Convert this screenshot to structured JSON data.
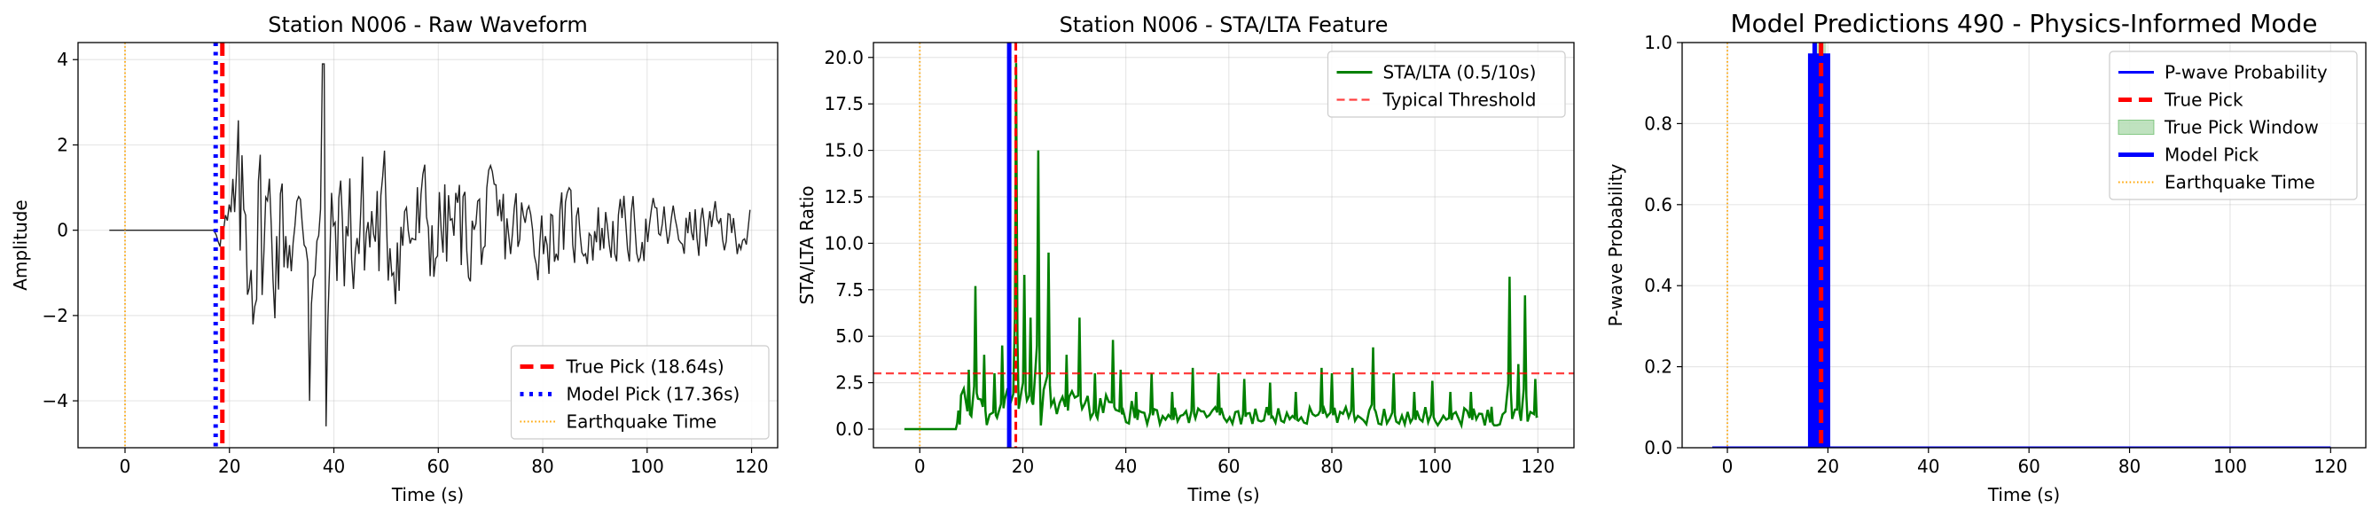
{
  "chart_data": [
    {
      "type": "line",
      "title": "Station N006 - Raw Waveform",
      "xlabel": "Time (s)",
      "ylabel": "Amplitude",
      "xlim": [
        -9,
        125
      ],
      "ylim": [
        -5.1,
        4.4
      ],
      "xticks": [
        0,
        20,
        40,
        60,
        80,
        100,
        120
      ],
      "yticks": [
        -4,
        -2,
        0,
        2,
        4
      ],
      "xtick_labels": [
        "0",
        "20",
        "40",
        "60",
        "80",
        "100",
        "120"
      ],
      "ytick_labels": [
        "−4",
        "−2",
        "0",
        "2",
        "4"
      ],
      "grid": true,
      "legend_position": "lower-right",
      "series": [
        {
          "name": "",
          "color": "#222222",
          "kind": "waveform",
          "x_start": -3,
          "x_end": 120,
          "onset": 17.5,
          "peak_amp": 4.0,
          "min_amp": -4.6
        }
      ],
      "vlines": [
        {
          "name": "True Pick (18.64s)",
          "x": 18.64,
          "color": "#ff0000",
          "style": "dashed",
          "width": "thick"
        },
        {
          "name": "Model Pick (17.36s)",
          "x": 17.36,
          "color": "#0000ff",
          "style": "dotted",
          "width": "thick"
        },
        {
          "name": "Earthquake Time",
          "x": 0,
          "color": "#ffa500",
          "style": "dotted",
          "width": "thin"
        }
      ],
      "legend": [
        "True Pick (18.64s)",
        "Model Pick (17.36s)",
        "Earthquake Time"
      ]
    },
    {
      "type": "line",
      "title": "Station N006 - STA/LTA Feature",
      "xlabel": "Time (s)",
      "ylabel": "STA/LTA Ratio",
      "xlim": [
        -9,
        127
      ],
      "ylim": [
        -1.0,
        20.8
      ],
      "xticks": [
        0,
        20,
        40,
        60,
        80,
        100,
        120
      ],
      "yticks": [
        0.0,
        2.5,
        5.0,
        7.5,
        10.0,
        12.5,
        15.0,
        17.5,
        20.0
      ],
      "xtick_labels": [
        "0",
        "20",
        "40",
        "60",
        "80",
        "100",
        "120"
      ],
      "ytick_labels": [
        "0.0",
        "2.5",
        "5.0",
        "7.5",
        "10.0",
        "12.5",
        "15.0",
        "17.5",
        "20.0"
      ],
      "grid": true,
      "legend_position": "top-right",
      "series": [
        {
          "name": "STA/LTA (0.5/10s)",
          "color": "#008000",
          "kind": "stalta",
          "x_start": -3,
          "x_end": 120
        }
      ],
      "peaks": [
        {
          "x": 7.5,
          "y": 1.0
        },
        {
          "x": 9.5,
          "y": 3.2
        },
        {
          "x": 10.8,
          "y": 7.7
        },
        {
          "x": 12.5,
          "y": 4.0
        },
        {
          "x": 14.5,
          "y": 3.0
        },
        {
          "x": 16.0,
          "y": 4.5
        },
        {
          "x": 18.7,
          "y": 19.7
        },
        {
          "x": 20.3,
          "y": 8.3
        },
        {
          "x": 21.5,
          "y": 6.0
        },
        {
          "x": 23.0,
          "y": 15.0
        },
        {
          "x": 25.0,
          "y": 9.5
        },
        {
          "x": 28.5,
          "y": 4.0
        },
        {
          "x": 31.0,
          "y": 6.0
        },
        {
          "x": 34.0,
          "y": 3.0
        },
        {
          "x": 37.5,
          "y": 4.8
        },
        {
          "x": 39.0,
          "y": 3.2
        },
        {
          "x": 42.0,
          "y": 2.0
        },
        {
          "x": 45.0,
          "y": 3.0
        },
        {
          "x": 49.0,
          "y": 2.0
        },
        {
          "x": 53.0,
          "y": 3.3
        },
        {
          "x": 58.0,
          "y": 3.0
        },
        {
          "x": 63.0,
          "y": 2.7
        },
        {
          "x": 68.0,
          "y": 2.5
        },
        {
          "x": 73.0,
          "y": 2.0
        },
        {
          "x": 78.0,
          "y": 3.3
        },
        {
          "x": 80.0,
          "y": 3.0
        },
        {
          "x": 84.0,
          "y": 3.3
        },
        {
          "x": 88.0,
          "y": 4.4
        },
        {
          "x": 92.0,
          "y": 3.0
        },
        {
          "x": 96.0,
          "y": 2.0
        },
        {
          "x": 99.5,
          "y": 2.6
        },
        {
          "x": 103.0,
          "y": 2.0
        },
        {
          "x": 107.0,
          "y": 2.0
        },
        {
          "x": 111.0,
          "y": 1.2
        },
        {
          "x": 114.5,
          "y": 8.2
        },
        {
          "x": 116.2,
          "y": 3.5
        },
        {
          "x": 117.5,
          "y": 7.2
        },
        {
          "x": 119.5,
          "y": 2.7
        }
      ],
      "hlines": [
        {
          "name": "Typical Threshold",
          "y": 3.0,
          "color": "#ff0000",
          "style": "dashed"
        }
      ],
      "vlines": [
        {
          "name": "",
          "x": 17.36,
          "color": "#0000ff",
          "style": "solid",
          "width": "thick"
        },
        {
          "name": "",
          "x": 18.64,
          "color": "#ff0000",
          "style": "dashed",
          "width": "medium"
        },
        {
          "name": "",
          "x": 0,
          "color": "#ffa500",
          "style": "dotted",
          "width": "thin"
        }
      ],
      "legend": [
        "STA/LTA (0.5/10s)",
        "Typical Threshold"
      ]
    },
    {
      "type": "line",
      "title": "Model Predictions 490 - Physics-Informed Mode",
      "xlabel": "Time (s)",
      "ylabel": "P-wave Probability",
      "xlim": [
        -9,
        127
      ],
      "ylim": [
        0.0,
        1.0
      ],
      "xticks": [
        0,
        20,
        40,
        60,
        80,
        100,
        120
      ],
      "yticks": [
        0.0,
        0.2,
        0.4,
        0.6,
        0.8,
        1.0
      ],
      "xtick_labels": [
        "0",
        "20",
        "40",
        "60",
        "80",
        "100",
        "120"
      ],
      "ytick_labels": [
        "0.0",
        "0.2",
        "0.4",
        "0.6",
        "0.8",
        "1.0"
      ],
      "grid": true,
      "legend_position": "top-right",
      "series": [
        {
          "name": "P-wave Probability",
          "color": "#0000ff",
          "kind": "probability",
          "x_start": -3,
          "x_end": 120
        }
      ],
      "prob_block": {
        "x0": 16.3,
        "x1": 20.2,
        "y": 0.97
      },
      "true_pick_window": {
        "name": "True Pick Window",
        "x0": 17.64,
        "x1": 19.64,
        "color": "#2ca02c"
      },
      "vlines": [
        {
          "name": "True Pick",
          "x": 18.64,
          "color": "#ff0000",
          "style": "dashed",
          "width": "thick"
        },
        {
          "name": "Model Pick",
          "x": 17.36,
          "color": "#0000ff",
          "style": "solid",
          "width": "thick"
        },
        {
          "name": "Earthquake Time",
          "x": 0,
          "color": "#ffa500",
          "style": "dotted",
          "width": "thin"
        }
      ],
      "legend": [
        "P-wave Probability",
        "True Pick",
        "True Pick Window",
        "Model Pick",
        "Earthquake Time"
      ]
    }
  ]
}
